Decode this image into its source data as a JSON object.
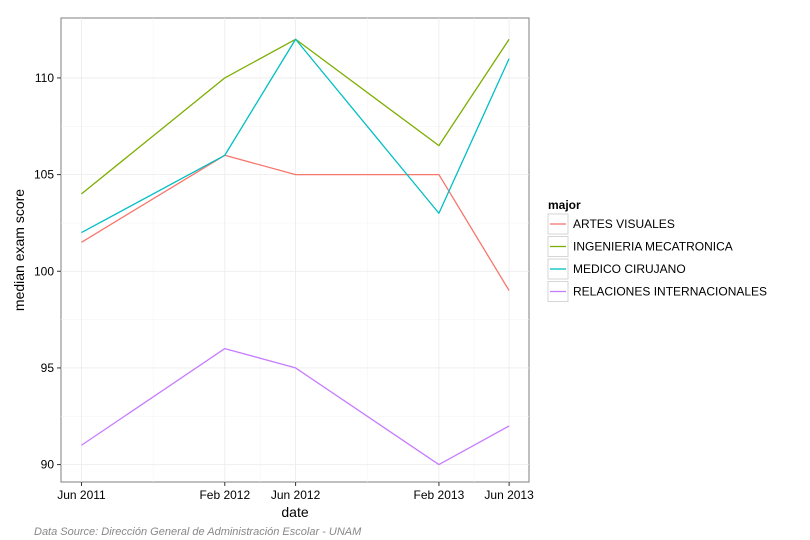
{
  "chart_data": {
    "type": "line",
    "xlabel": "date",
    "ylabel": "median exam score",
    "x_ticks": [
      "Jun 2011",
      "Feb 2012",
      "Jun 2012",
      "Feb 2013",
      "Jun 2013"
    ],
    "x": [
      "2011-06-01",
      "2012-02-01",
      "2012-06-01",
      "2013-02-01",
      "2013-06-01"
    ],
    "y_ticks": [
      90,
      95,
      100,
      105,
      110
    ],
    "ylim": [
      89.1,
      113.1
    ],
    "grid": true,
    "legend": {
      "title": "major",
      "position": "right"
    },
    "series": [
      {
        "name": "ARTES VISUALES",
        "color": "#f8766d",
        "values": [
          101.5,
          106,
          105,
          105,
          99
        ]
      },
      {
        "name": "INGENIERIA MECATRONICA",
        "color": "#7cae00",
        "values": [
          104,
          110,
          112,
          106.5,
          112
        ]
      },
      {
        "name": "MEDICO CIRUJANO",
        "color": "#00bfc4",
        "values": [
          102,
          106,
          112,
          103,
          111
        ]
      },
      {
        "name": "RELACIONES INTERNACIONALES",
        "color": "#c77cff",
        "values": [
          91,
          96,
          95,
          90,
          92
        ]
      }
    ]
  },
  "caption": "Data Source: Dirección General de Administración Escolar - UNAM"
}
